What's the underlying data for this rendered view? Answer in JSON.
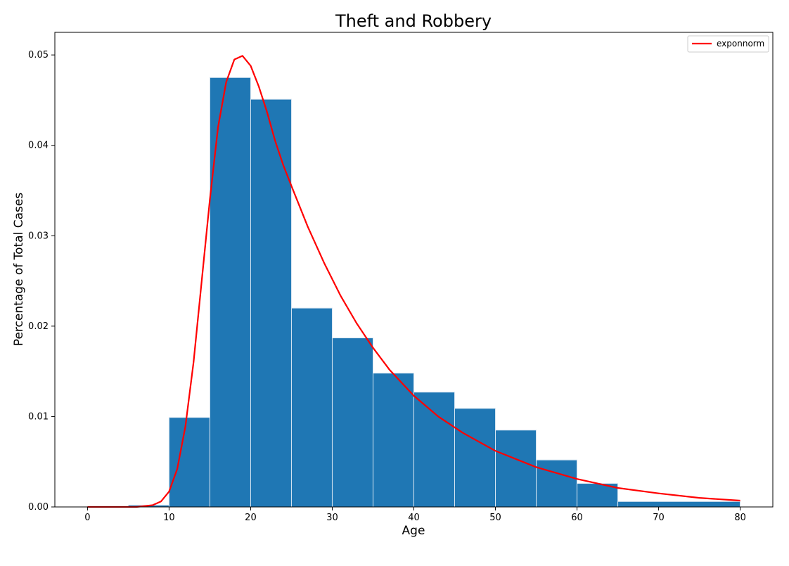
{
  "chart_data": {
    "type": "bar",
    "title": "Theft and Robbery",
    "xlabel": "Age",
    "ylabel": "Percentage of Total Cases",
    "xlim": [
      -4,
      84
    ],
    "ylim": [
      0,
      0.0525
    ],
    "xticks": [
      "0",
      "10",
      "20",
      "30",
      "40",
      "50",
      "60",
      "70",
      "80"
    ],
    "yticks": [
      "0.00",
      "0.01",
      "0.02",
      "0.03",
      "0.04",
      "0.05"
    ],
    "histogram": {
      "bin_edges": [
        5,
        10,
        15,
        20,
        25,
        30,
        35,
        40,
        45,
        50,
        55,
        60,
        65,
        80
      ],
      "values": [
        0.0002,
        0.0099,
        0.0475,
        0.0451,
        0.022,
        0.0187,
        0.0148,
        0.0127,
        0.0109,
        0.0085,
        0.0052,
        0.0026,
        0.0006
      ],
      "color": "#1f77b4"
    },
    "series": [
      {
        "name": "exponnorm",
        "color": "#ff0000",
        "x": [
          0,
          2,
          4,
          6,
          8,
          9,
          10,
          11,
          12,
          13,
          14,
          15,
          16,
          17,
          18,
          19,
          20,
          21,
          22,
          23,
          24,
          25,
          27,
          29,
          31,
          33,
          35,
          37,
          40,
          43,
          46,
          50,
          55,
          60,
          65,
          70,
          75,
          80
        ],
        "y": [
          0.0,
          0.0,
          0.0,
          0.0,
          0.0002,
          0.0006,
          0.0017,
          0.0042,
          0.0089,
          0.016,
          0.025,
          0.034,
          0.042,
          0.047,
          0.0495,
          0.0499,
          0.0488,
          0.0465,
          0.0437,
          0.0405,
          0.0378,
          0.0355,
          0.031,
          0.027,
          0.0234,
          0.0203,
          0.0176,
          0.0152,
          0.0123,
          0.01,
          0.0082,
          0.0062,
          0.0044,
          0.0031,
          0.0021,
          0.0015,
          0.001,
          0.0007
        ]
      }
    ],
    "legend": {
      "position": "top-right"
    },
    "grid": false
  }
}
